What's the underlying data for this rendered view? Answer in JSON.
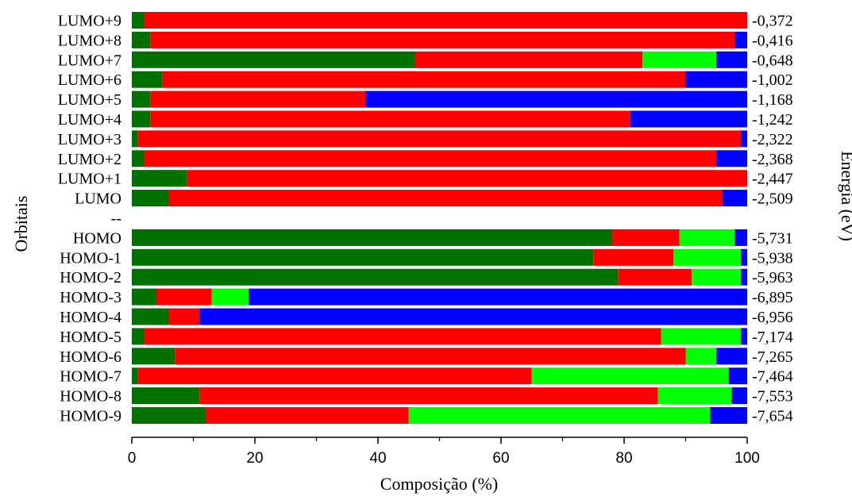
{
  "chart_data": {
    "type": "bar",
    "orientation": "horizontal",
    "stacked": true,
    "xlabel": "Composição (%)",
    "ylabel": "Orbitais",
    "ylabel_right": "Energia (eV)",
    "xlim": [
      0,
      100
    ],
    "xticks": [
      "0",
      "20",
      "40",
      "60",
      "80",
      "100"
    ],
    "categories": [
      "LUMO+9",
      "LUMO+8",
      "LUMO+7",
      "LUMO+6",
      "LUMO+5",
      "LUMO+4",
      "LUMO+3",
      "LUMO+2",
      "LUMO+1",
      "LUMO",
      "--",
      "HOMO",
      "HOMO-1",
      "HOMO-2",
      "HOMO-3",
      "HOMO-4",
      "HOMO-5",
      "HOMO-6",
      "HOMO-7",
      "HOMO-8",
      "HOMO-9"
    ],
    "energies": [
      "-0,372",
      "-0,416",
      "-0,648",
      "-1,002",
      "-1,168",
      "-1,242",
      "-2,322",
      "-2,368",
      "-2,447",
      "-2,509",
      "",
      "-5,731",
      "-5,938",
      "-5,963",
      "-6,895",
      "-6,956",
      "-7,174",
      "-7,265",
      "-7,464",
      "-7,553",
      "-7,654"
    ],
    "series": [
      {
        "color": "#007000",
        "values": [
          2,
          3,
          46,
          5,
          3,
          3,
          1,
          2,
          9,
          6,
          null,
          78,
          75,
          79,
          4,
          6,
          2,
          7,
          1,
          11,
          12
        ]
      },
      {
        "color": "#ff0000",
        "values": [
          98,
          95,
          37,
          85,
          35,
          78,
          98,
          93,
          91,
          90,
          null,
          11,
          13,
          12,
          9,
          5,
          84,
          83,
          64,
          74.5,
          33
        ]
      },
      {
        "color": "#00ff00",
        "values": [
          0,
          0,
          12,
          0,
          0,
          0,
          0,
          0,
          0,
          0,
          null,
          9,
          11,
          8,
          6,
          0,
          13,
          5,
          32,
          12,
          49
        ]
      },
      {
        "color": "#0000ff",
        "values": [
          0,
          2,
          5,
          10,
          62,
          19,
          1,
          5,
          0,
          4,
          null,
          2,
          1,
          1,
          81,
          89,
          1,
          5,
          3,
          2.5,
          6
        ]
      }
    ],
    "grid": false
  }
}
